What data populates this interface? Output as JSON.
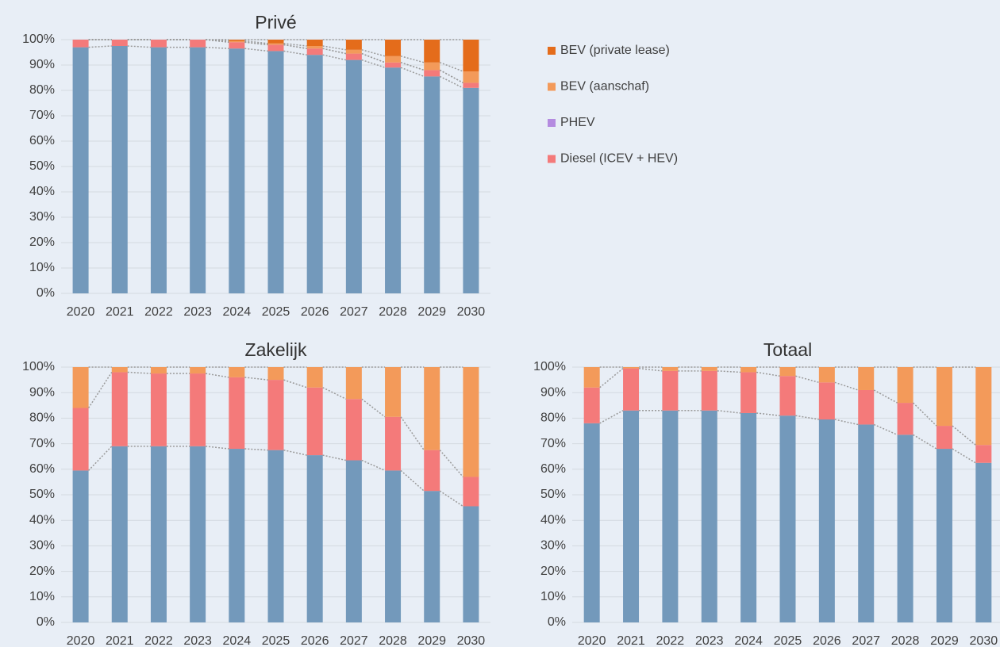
{
  "chart_data": [
    {
      "type": "bar",
      "stacked": true,
      "title": "Privé",
      "categories": [
        "2020",
        "2021",
        "2022",
        "2023",
        "2024",
        "2025",
        "2026",
        "2027",
        "2028",
        "2029",
        "2030"
      ],
      "series": [
        {
          "color": "#7399bb",
          "values": [
            97,
            97.5,
            97,
            97,
            96.5,
            95.5,
            94,
            92,
            89,
            85.5,
            81
          ]
        },
        {
          "name": "Diesel (ICEV + HEV)",
          "color": "#f47a7a",
          "values": [
            3,
            2.5,
            3,
            3,
            2.5,
            2.5,
            2.5,
            2.5,
            2,
            2.5,
            2
          ]
        },
        {
          "name": "PHEV",
          "color": "#b48be0",
          "values": [
            0,
            0,
            0,
            0,
            0,
            0,
            0,
            0,
            0,
            0,
            0
          ]
        },
        {
          "name": "BEV (aanschaf)",
          "color": "#f39a5a",
          "values": [
            0,
            0,
            0,
            0,
            0.5,
            0.5,
            1,
            1.5,
            2.5,
            3,
            4.5
          ]
        },
        {
          "name": "BEV (private lease)",
          "color": "#e46c1b",
          "values": [
            0,
            0,
            0,
            0,
            0.5,
            1.5,
            2.5,
            4,
            6.5,
            9,
            12.5
          ]
        }
      ],
      "ylim": [
        0,
        100
      ],
      "yticks": [
        {
          "value": 0,
          "label": "0%"
        },
        {
          "value": 10,
          "label": "10%"
        },
        {
          "value": 20,
          "label": "20%"
        },
        {
          "value": 30,
          "label": "30%"
        },
        {
          "value": 40,
          "label": "40%"
        },
        {
          "value": 50,
          "label": "50%"
        },
        {
          "value": 60,
          "label": "60%"
        },
        {
          "value": 70,
          "label": "70%"
        },
        {
          "value": 80,
          "label": "80%"
        },
        {
          "value": 90,
          "label": "90%"
        },
        {
          "value": 100,
          "label": "100%"
        }
      ],
      "grid": true,
      "legend": "right"
    },
    {
      "type": "bar",
      "stacked": true,
      "title": "Zakelijk",
      "categories": [
        "2020",
        "2021",
        "2022",
        "2023",
        "2024",
        "2025",
        "2026",
        "2027",
        "2028",
        "2029",
        "2030"
      ],
      "series": [
        {
          "color": "#7399bb",
          "values": [
            59.5,
            69,
            69,
            69,
            68,
            67.5,
            65.5,
            63.5,
            59.5,
            51.5,
            45.5
          ]
        },
        {
          "color": "#f47a7a",
          "values": [
            24.5,
            29,
            28.5,
            28.5,
            28,
            27.5,
            26.5,
            24,
            21,
            16,
            11.5
          ]
        },
        {
          "color": "#f39a5a",
          "values": [
            16,
            2,
            2.5,
            2.5,
            4,
            5,
            8,
            12.5,
            19.5,
            32.5,
            43
          ]
        }
      ],
      "ylim": [
        0,
        100
      ],
      "yticks": [
        {
          "value": 0,
          "label": "0%"
        },
        {
          "value": 10,
          "label": "10%"
        },
        {
          "value": 20,
          "label": "20%"
        },
        {
          "value": 30,
          "label": "30%"
        },
        {
          "value": 40,
          "label": "40%"
        },
        {
          "value": 50,
          "label": "50%"
        },
        {
          "value": 60,
          "label": "60%"
        },
        {
          "value": 70,
          "label": "70%"
        },
        {
          "value": 80,
          "label": "80%"
        },
        {
          "value": 90,
          "label": "90%"
        },
        {
          "value": 100,
          "label": "100%"
        }
      ],
      "grid": true
    },
    {
      "type": "bar",
      "stacked": true,
      "title": "Totaal",
      "categories": [
        "2020",
        "2021",
        "2022",
        "2023",
        "2024",
        "2025",
        "2026",
        "2027",
        "2028",
        "2029",
        "2030"
      ],
      "series": [
        {
          "color": "#7399bb",
          "values": [
            78,
            83,
            83,
            83,
            82,
            81,
            79.5,
            77.5,
            73.5,
            68,
            62.5
          ]
        },
        {
          "color": "#f47a7a",
          "values": [
            14,
            16.5,
            15.5,
            15.5,
            16,
            15.5,
            14.5,
            13.5,
            12.5,
            9,
            7
          ]
        },
        {
          "color": "#f39a5a",
          "values": [
            8,
            0.5,
            1.5,
            1.5,
            2,
            3.5,
            6,
            9,
            14,
            23,
            30.5
          ]
        }
      ],
      "ylim": [
        0,
        100
      ],
      "yticks": [
        {
          "value": 0,
          "label": "0%"
        },
        {
          "value": 10,
          "label": "10%"
        },
        {
          "value": 20,
          "label": "20%"
        },
        {
          "value": 30,
          "label": "30%"
        },
        {
          "value": 40,
          "label": "40%"
        },
        {
          "value": 50,
          "label": "50%"
        },
        {
          "value": 60,
          "label": "60%"
        },
        {
          "value": 70,
          "label": "70%"
        },
        {
          "value": 80,
          "label": "80%"
        },
        {
          "value": 90,
          "label": "90%"
        },
        {
          "value": 100,
          "label": "100%"
        }
      ],
      "grid": true
    }
  ]
}
